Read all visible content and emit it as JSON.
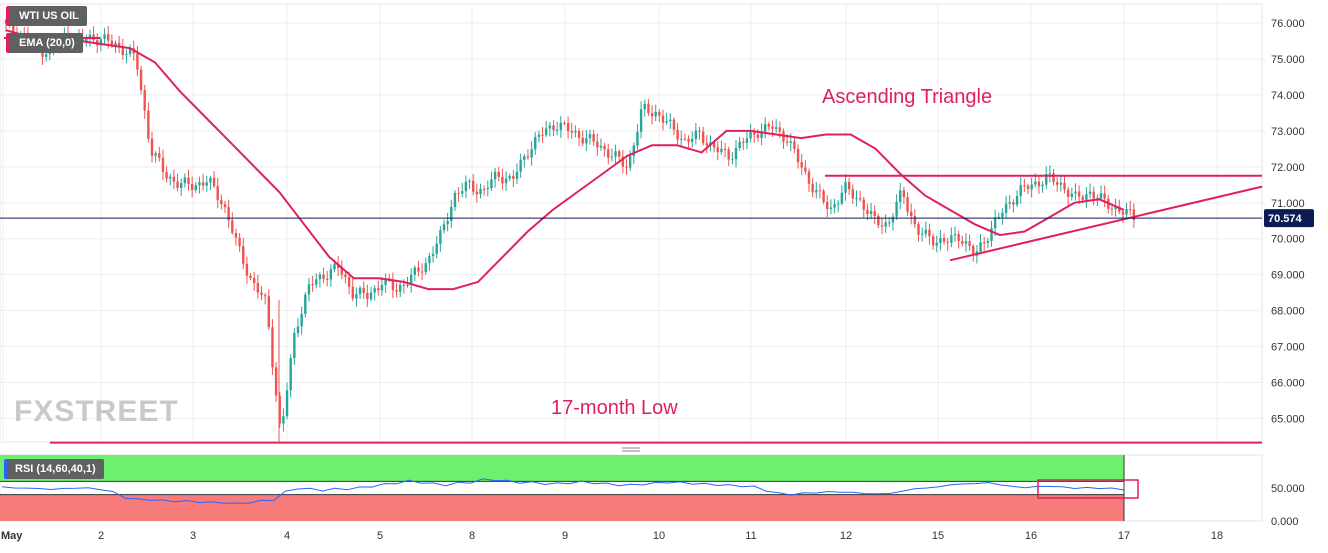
{
  "legend": {
    "symbol": "WTI US OIL",
    "ema": "EMA (20,0)",
    "rsi": "RSI (14,60,40,1)"
  },
  "annotations": {
    "pattern": "Ascending Triangle",
    "low": "17-month Low"
  },
  "watermark": "FXSTREET",
  "current_price": "70.574",
  "colors": {
    "up": "#26a69a",
    "down": "#ef5350",
    "annotation": "#e0205e",
    "rsi_line": "#2962ff",
    "rsi_upper_zone": "#6ef06e",
    "rsi_lower_zone": "#f77b7b",
    "price_tag": "#0d1b55"
  },
  "chart_data": [
    {
      "type": "candlestick",
      "ylim": [
        64.4,
        76.6
      ],
      "yticks": [
        "65.000",
        "66.000",
        "67.000",
        "68.000",
        "69.000",
        "70.000",
        "71.000",
        "72.000",
        "73.000",
        "74.000",
        "75.000",
        "76.000"
      ],
      "x_tick_labels": [
        "May",
        "2",
        "3",
        "4",
        "5",
        "8",
        "9",
        "10",
        "11",
        "12",
        "15",
        "16",
        "17",
        "18"
      ],
      "close_path": [
        75.9,
        75.7,
        75.3,
        75.2,
        75.6,
        75.5,
        75.6,
        75.5,
        75.3,
        75.0,
        72.5,
        71.8,
        71.5,
        71.5,
        71.6,
        71.0,
        69.8,
        68.8,
        68.2,
        64.5,
        67.5,
        68.7,
        69.0,
        69.2,
        68.5,
        68.4,
        68.8,
        68.6,
        68.9,
        69.3,
        70.0,
        71.2,
        71.5,
        71.3,
        71.8,
        71.6,
        72.4,
        72.9,
        73.2,
        73.0,
        72.8,
        72.6,
        72.3,
        72.0,
        73.6,
        73.5,
        73.1,
        72.7,
        72.9,
        72.5,
        72.3,
        72.7,
        73.0,
        73.1,
        72.8,
        72.0,
        71.3,
        70.8,
        71.4,
        71.1,
        70.5,
        70.4,
        71.3,
        70.2,
        70.0,
        69.9,
        70.1,
        69.5,
        70.2,
        70.8,
        71.3,
        71.5,
        71.7,
        71.5,
        71.1,
        71.3,
        71.0,
        70.8,
        70.6
      ],
      "ema_path": [
        75.8,
        75.6,
        75.5,
        75.5,
        75.4,
        75.3,
        74.9,
        74.1,
        73.4,
        72.7,
        72.0,
        71.3,
        70.4,
        69.5,
        68.9,
        68.9,
        68.8,
        68.6,
        68.6,
        68.8,
        69.5,
        70.2,
        70.8,
        71.3,
        71.8,
        72.3,
        72.6,
        72.6,
        72.4,
        73.0,
        73.0,
        72.9,
        72.8,
        72.9,
        72.9,
        72.5,
        71.8,
        71.2,
        70.8,
        70.4,
        70.1,
        70.2,
        70.6,
        71.0,
        71.1,
        70.8
      ],
      "ascending_triangle": {
        "resistance": [
          71.75,
          71.75
        ],
        "support": [
          69.4,
          71.45
        ]
      },
      "support_line": 64.33
    },
    {
      "type": "line",
      "series": [
        {
          "name": "RSI (14,60,40,1)"
        }
      ],
      "ylim": [
        0,
        100
      ],
      "yticks": [
        "0.000",
        "50.000"
      ],
      "bands": [
        40,
        60
      ],
      "values": [
        52,
        50,
        50,
        49,
        48,
        49,
        50,
        50,
        48,
        44,
        35,
        33,
        32,
        31,
        30,
        30,
        29,
        28,
        28,
        26,
        28,
        30,
        32,
        44,
        50,
        48,
        47,
        48,
        49,
        50,
        53,
        55,
        58,
        60,
        59,
        56,
        55,
        57,
        59,
        62,
        63,
        60,
        59,
        58,
        57,
        56,
        58,
        59,
        58,
        56,
        55,
        54,
        56,
        57,
        59,
        58,
        57,
        56,
        55,
        54,
        53,
        52,
        46,
        42,
        40,
        42,
        43,
        44,
        44,
        43,
        42,
        41,
        42,
        45,
        49,
        50,
        52,
        55,
        56,
        57,
        58,
        55,
        52,
        51,
        52,
        53,
        51,
        50,
        50,
        50,
        49,
        48
      ]
    }
  ]
}
